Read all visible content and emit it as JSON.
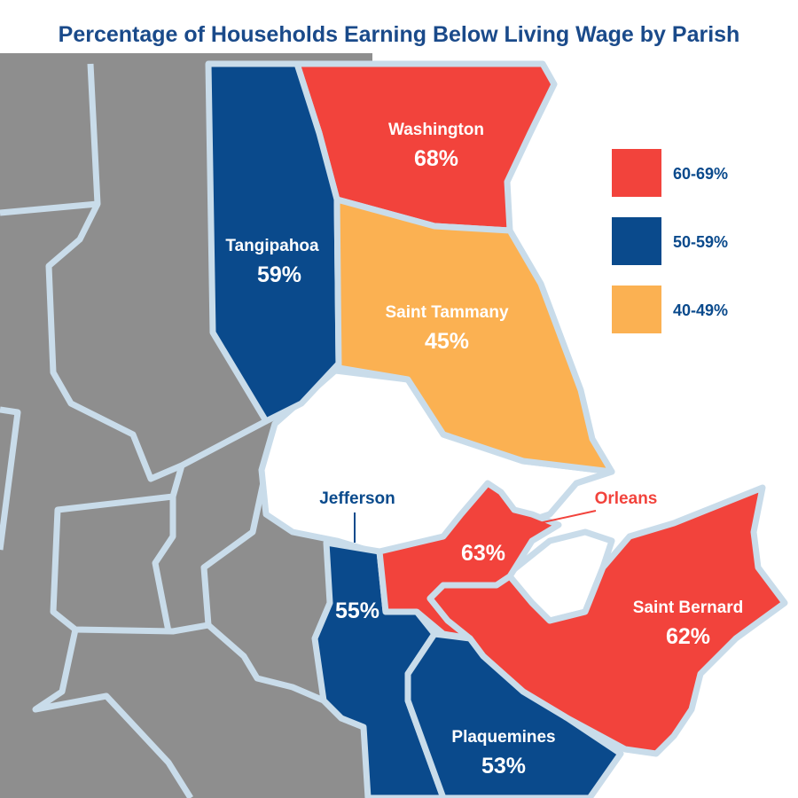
{
  "title": "Percentage of Households Earning Below Living Wage by Parish",
  "colors": {
    "high": "#f2433c",
    "mid": "#0a4a8c",
    "low": "#fbb152",
    "other": "#8e8e8e",
    "border": "#c9dcea",
    "water": "#ffffff"
  },
  "legend": [
    {
      "label": "60-69%",
      "color": "#f2433c"
    },
    {
      "label": "50-59%",
      "color": "#0a4a8c"
    },
    {
      "label": "40-49%",
      "color": "#fbb152"
    }
  ],
  "parishes": [
    {
      "name": "Washington",
      "value": "68%",
      "range": "60-69%"
    },
    {
      "name": "Tangipahoa",
      "value": "59%",
      "range": "50-59%"
    },
    {
      "name": "Saint Tammany",
      "value": "45%",
      "range": "40-49%"
    },
    {
      "name": "Jefferson",
      "value": "55%",
      "range": "50-59%"
    },
    {
      "name": "Orleans",
      "value": "63%",
      "range": "60-69%"
    },
    {
      "name": "Saint Bernard",
      "value": "62%",
      "range": "60-69%"
    },
    {
      "name": "Plaquemines",
      "value": "53%",
      "range": "50-59%"
    }
  ]
}
